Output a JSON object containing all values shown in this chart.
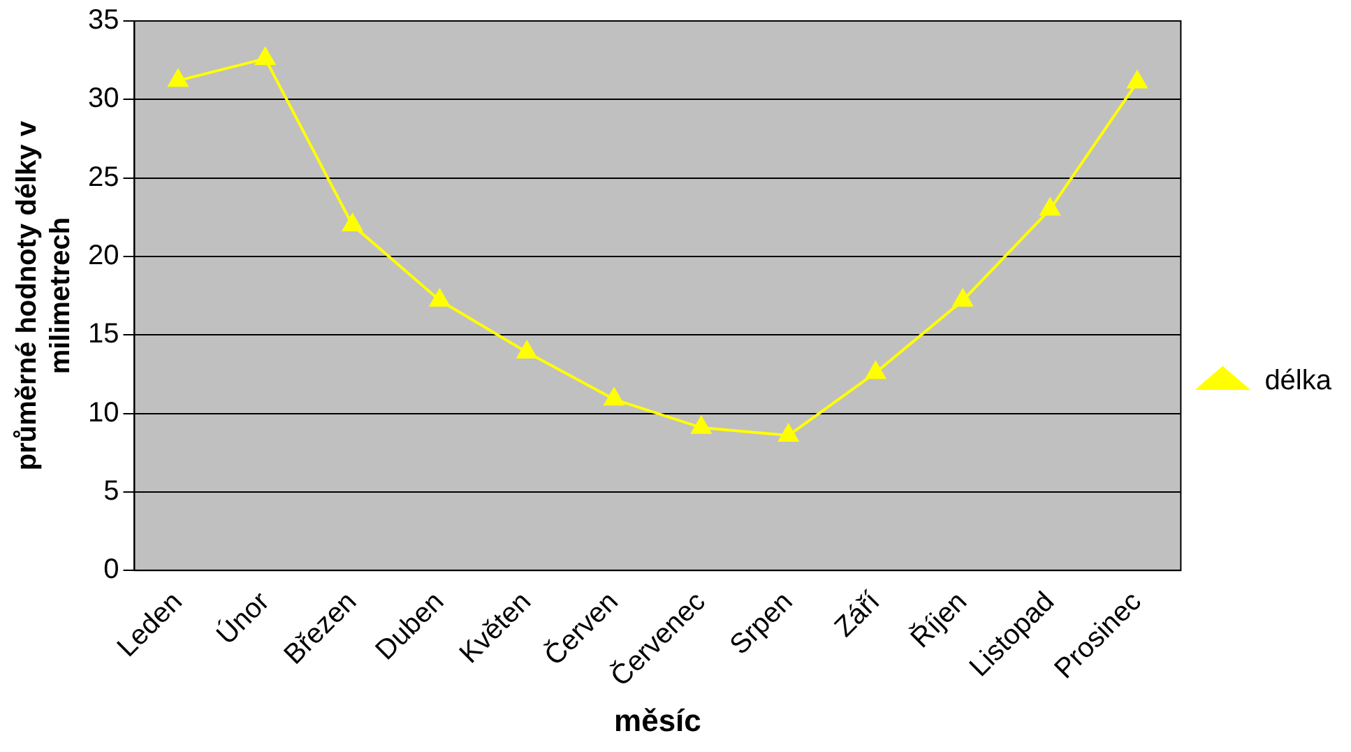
{
  "chart_data": {
    "type": "line",
    "xlabel": "měsíc",
    "ylabel": "průměrné hodnoty délky v milimetrech",
    "categories": [
      "Leden",
      "Únor",
      "Březen",
      "Duben",
      "Květen",
      "Červen",
      "Červenec",
      "Srpen",
      "Září",
      "Říjen",
      "Listopad",
      "Prosinec"
    ],
    "series": [
      {
        "name": "délka",
        "color": "#ffff00",
        "values": [
          31.2,
          32.6,
          22.0,
          17.2,
          13.9,
          10.9,
          9.1,
          8.6,
          12.6,
          17.2,
          23.0,
          31.1
        ]
      }
    ],
    "ylim": [
      0,
      35
    ],
    "yticks": [
      0,
      5,
      10,
      15,
      20,
      25,
      30,
      35
    ],
    "grid": "y",
    "legend": "right",
    "marker": "triangle",
    "line_style": "solid"
  }
}
